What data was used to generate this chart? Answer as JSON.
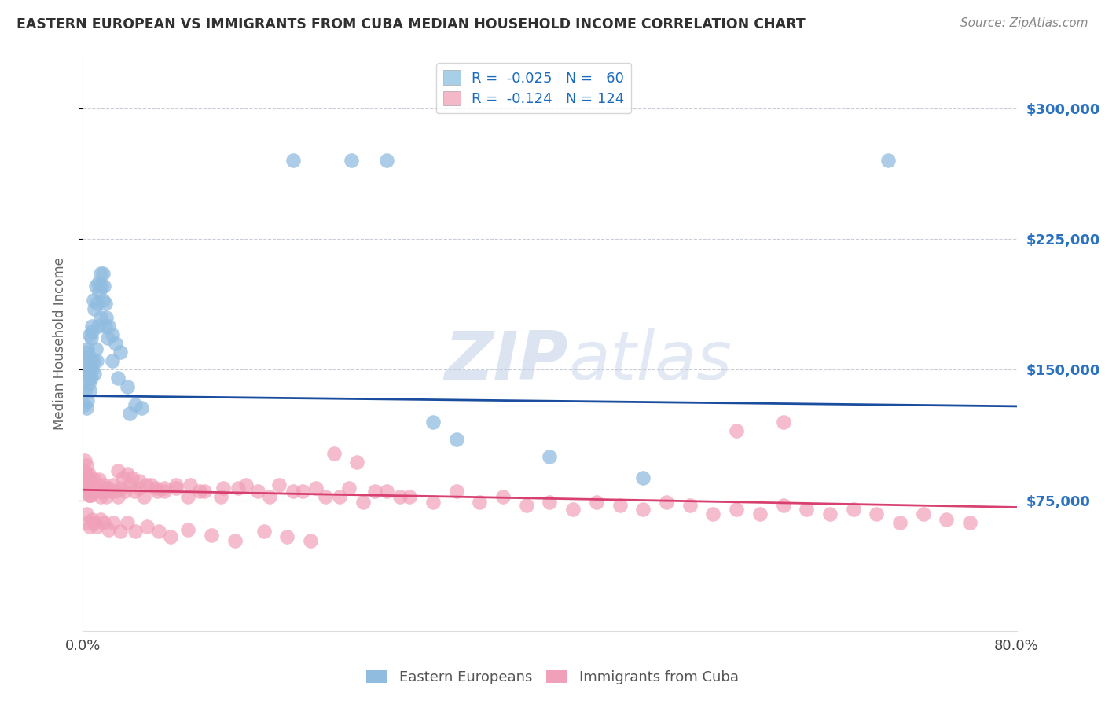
{
  "title": "EASTERN EUROPEAN VS IMMIGRANTS FROM CUBA MEDIAN HOUSEHOLD INCOME CORRELATION CHART",
  "source": "Source: ZipAtlas.com",
  "ylabel": "Median Household Income",
  "xlim": [
    0.0,
    0.8
  ],
  "ylim": [
    0,
    330000
  ],
  "yticks": [
    75000,
    150000,
    225000,
    300000
  ],
  "ytick_labels": [
    "$75,000",
    "$150,000",
    "$225,000",
    "$300,000"
  ],
  "legend1_patch_color": "#a8cfe8",
  "legend2_patch_color": "#f5b8c8",
  "line1_color": "#1a4d9e",
  "line2_color": "#d84070",
  "dot1_color": "#90bce0",
  "dot2_color": "#f0a0b8",
  "watermark_zip": "ZIP",
  "watermark_atlas": "atlas",
  "background_color": "#ffffff",
  "grid_color": "#c8cdd8",
  "title_color": "#303030",
  "source_color": "#888888",
  "blue_line_x": [
    0.0,
    0.8
  ],
  "blue_line_y": [
    135000,
    129000
  ],
  "pink_line_x": [
    0.0,
    0.8
  ],
  "pink_line_y": [
    81000,
    71000
  ],
  "blue_x": [
    0.002,
    0.003,
    0.003,
    0.004,
    0.004,
    0.005,
    0.005,
    0.006,
    0.006,
    0.007,
    0.007,
    0.008,
    0.008,
    0.009,
    0.01,
    0.011,
    0.012,
    0.013,
    0.014,
    0.015,
    0.016,
    0.017,
    0.018,
    0.019,
    0.02,
    0.022,
    0.025,
    0.028,
    0.032,
    0.038,
    0.001,
    0.002,
    0.003,
    0.004,
    0.005,
    0.006,
    0.007,
    0.008,
    0.009,
    0.01,
    0.011,
    0.012,
    0.013,
    0.015,
    0.017,
    0.019,
    0.021,
    0.025,
    0.03,
    0.04,
    0.18,
    0.23,
    0.26,
    0.69,
    0.3,
    0.32,
    0.4,
    0.48,
    0.045,
    0.05
  ],
  "blue_y": [
    155000,
    160000,
    148000,
    152000,
    162000,
    158000,
    145000,
    170000,
    148000,
    168000,
    155000,
    175000,
    172000,
    190000,
    185000,
    198000,
    188000,
    200000,
    195000,
    205000,
    198000,
    205000,
    198000,
    188000,
    180000,
    175000,
    170000,
    165000,
    160000,
    140000,
    130000,
    138000,
    128000,
    132000,
    142000,
    138000,
    145000,
    150000,
    155000,
    148000,
    162000,
    155000,
    175000,
    180000,
    190000,
    175000,
    168000,
    155000,
    145000,
    125000,
    270000,
    270000,
    270000,
    270000,
    120000,
    110000,
    100000,
    88000,
    130000,
    128000
  ],
  "pink_x": [
    0.001,
    0.002,
    0.002,
    0.003,
    0.003,
    0.003,
    0.004,
    0.004,
    0.005,
    0.005,
    0.005,
    0.006,
    0.006,
    0.007,
    0.007,
    0.008,
    0.009,
    0.01,
    0.011,
    0.012,
    0.013,
    0.014,
    0.015,
    0.016,
    0.017,
    0.018,
    0.019,
    0.02,
    0.022,
    0.024,
    0.026,
    0.028,
    0.03,
    0.033,
    0.036,
    0.04,
    0.044,
    0.048,
    0.052,
    0.058,
    0.064,
    0.07,
    0.08,
    0.09,
    0.1,
    0.12,
    0.14,
    0.16,
    0.18,
    0.2,
    0.22,
    0.24,
    0.26,
    0.28,
    0.3,
    0.32,
    0.34,
    0.36,
    0.38,
    0.4,
    0.42,
    0.44,
    0.46,
    0.48,
    0.5,
    0.52,
    0.54,
    0.56,
    0.58,
    0.6,
    0.62,
    0.64,
    0.66,
    0.68,
    0.7,
    0.72,
    0.74,
    0.76,
    0.003,
    0.004,
    0.006,
    0.008,
    0.01,
    0.012,
    0.015,
    0.018,
    0.022,
    0.026,
    0.032,
    0.038,
    0.045,
    0.055,
    0.065,
    0.075,
    0.09,
    0.11,
    0.13,
    0.155,
    0.175,
    0.195,
    0.215,
    0.235,
    0.03,
    0.034,
    0.038,
    0.042,
    0.048,
    0.054,
    0.062,
    0.07,
    0.08,
    0.092,
    0.104,
    0.118,
    0.133,
    0.15,
    0.168,
    0.188,
    0.208,
    0.228,
    0.25,
    0.272,
    0.6,
    0.56
  ],
  "pink_y": [
    92000,
    88000,
    98000,
    83000,
    90000,
    95000,
    80000,
    88000,
    78000,
    85000,
    90000,
    78000,
    87000,
    82000,
    78000,
    80000,
    83000,
    87000,
    84000,
    80000,
    82000,
    87000,
    77000,
    80000,
    82000,
    84000,
    80000,
    77000,
    82000,
    80000,
    84000,
    80000,
    77000,
    82000,
    80000,
    84000,
    80000,
    82000,
    77000,
    84000,
    80000,
    82000,
    84000,
    77000,
    80000,
    82000,
    84000,
    77000,
    80000,
    82000,
    77000,
    74000,
    80000,
    77000,
    74000,
    80000,
    74000,
    77000,
    72000,
    74000,
    70000,
    74000,
    72000,
    70000,
    74000,
    72000,
    67000,
    70000,
    67000,
    72000,
    70000,
    67000,
    70000,
    67000,
    62000,
    67000,
    64000,
    62000,
    67000,
    62000,
    60000,
    64000,
    62000,
    60000,
    64000,
    62000,
    58000,
    62000,
    57000,
    62000,
    57000,
    60000,
    57000,
    54000,
    58000,
    55000,
    52000,
    57000,
    54000,
    52000,
    102000,
    97000,
    92000,
    88000,
    90000,
    88000,
    86000,
    84000,
    82000,
    80000,
    82000,
    84000,
    80000,
    77000,
    82000,
    80000,
    84000,
    80000,
    77000,
    82000,
    80000,
    77000,
    120000,
    115000
  ]
}
